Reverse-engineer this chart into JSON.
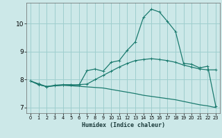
{
  "title": "",
  "xlabel": "Humidex (Indice chaleur)",
  "background_color": "#cce8e8",
  "grid_color": "#9ecece",
  "line_color": "#1a7a6e",
  "xlim": [
    -0.5,
    23.5
  ],
  "ylim": [
    6.8,
    10.75
  ],
  "xticks": [
    0,
    1,
    2,
    3,
    4,
    5,
    6,
    7,
    8,
    9,
    10,
    11,
    12,
    13,
    14,
    15,
    16,
    17,
    18,
    19,
    20,
    21,
    22,
    23
  ],
  "yticks": [
    7,
    8,
    9,
    10
  ],
  "line1_x": [
    0,
    1,
    2,
    3,
    4,
    5,
    6,
    7,
    8,
    9,
    10,
    11,
    12,
    13,
    14,
    15,
    16,
    17,
    18,
    19,
    20,
    21,
    22,
    23
  ],
  "line1_y": [
    7.95,
    7.85,
    7.75,
    7.78,
    7.8,
    7.8,
    7.82,
    7.84,
    8.0,
    8.15,
    8.3,
    8.45,
    8.58,
    8.68,
    8.72,
    8.75,
    8.72,
    8.68,
    8.62,
    8.52,
    8.45,
    8.38,
    8.35,
    8.35
  ],
  "line2_x": [
    0,
    1,
    2,
    3,
    4,
    5,
    6,
    7,
    8,
    9,
    10,
    11,
    12,
    13,
    14,
    15,
    16,
    17,
    18,
    19,
    20,
    21,
    22,
    23
  ],
  "line2_y": [
    7.95,
    7.82,
    7.75,
    7.8,
    7.82,
    7.82,
    7.8,
    8.32,
    8.38,
    8.3,
    8.62,
    8.68,
    9.05,
    9.35,
    10.22,
    10.52,
    10.42,
    10.08,
    9.72,
    8.58,
    8.55,
    8.42,
    8.48,
    7.05
  ],
  "line3_x": [
    0,
    1,
    2,
    3,
    4,
    5,
    6,
    7,
    8,
    9,
    10,
    11,
    12,
    13,
    14,
    15,
    16,
    17,
    18,
    19,
    20,
    21,
    22,
    23
  ],
  "line3_y": [
    7.95,
    7.82,
    7.75,
    7.78,
    7.8,
    7.78,
    7.76,
    7.74,
    7.72,
    7.7,
    7.65,
    7.6,
    7.55,
    7.5,
    7.44,
    7.4,
    7.36,
    7.32,
    7.28,
    7.22,
    7.16,
    7.1,
    7.06,
    7.0
  ]
}
